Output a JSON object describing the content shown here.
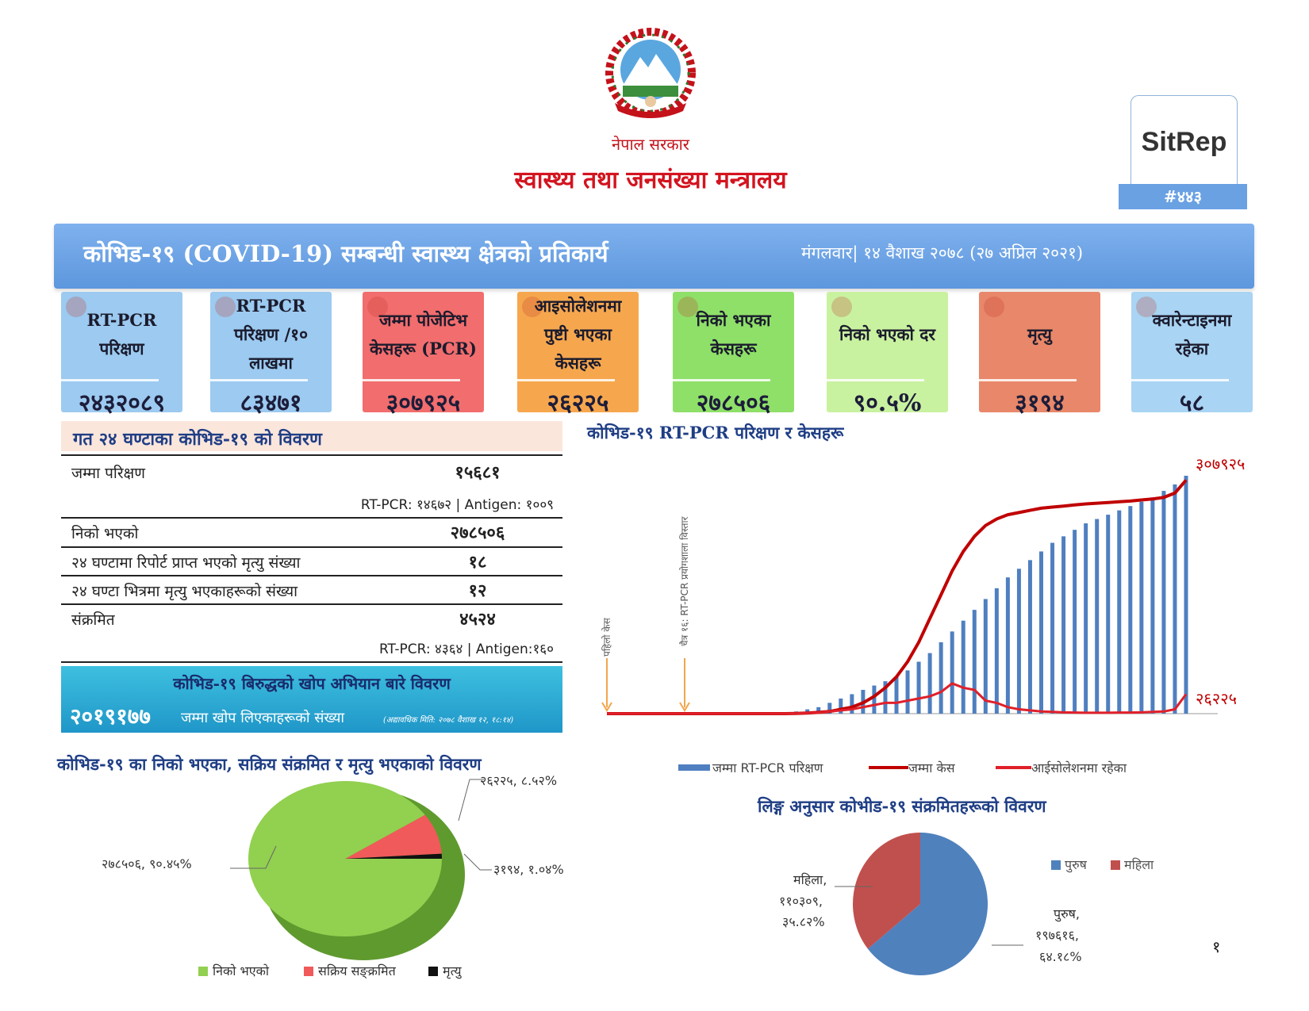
{
  "header": {
    "government": "नेपाल सरकार",
    "ministry": "स्वास्थ्य तथा जनसंख्या मन्त्रालय"
  },
  "sitrep": {
    "title": "SitRep",
    "number": "#४४३"
  },
  "banner": {
    "title": "कोभिड-१९ (COVID-19) सम्बन्धी स्वास्थ्य क्षेत्रको प्रतिकार्य",
    "date": "मंगलवार| १४ वैशाख २०७८ (२७ अप्रिल २०२१)"
  },
  "cards": [
    {
      "label": "RT-PCR परिक्षण",
      "value": "२४३२०८९",
      "color": "#9ccaf0"
    },
    {
      "label": "RT-PCR परिक्षण /१० लाखमा",
      "value": "८३४७१",
      "color": "#9ccaf0"
    },
    {
      "label": "जम्मा पोजेटिभ केसहरू (PCR)",
      "value": "३०७९२५",
      "color": "#f26d6d"
    },
    {
      "label": "आइसोलेशनमा पुष्टी भएका केसहरू",
      "value": "२६२२५",
      "color": "#f6a74e"
    },
    {
      "label": "निको भएका केसहरू",
      "value": "२७८५०६",
      "color": "#8fe069"
    },
    {
      "label": "निको भएको दर",
      "value": "९०.५%",
      "color": "#c9f2a0"
    },
    {
      "label": "मृत्यु",
      "value": "३१९४",
      "color": "#e88769"
    },
    {
      "label": "क्वारेन्टाइनमा रहेका",
      "value": "५८",
      "color": "#a9d4f3"
    }
  ],
  "last24": {
    "title": "गत २४ घण्टाका कोभिड-१९ को विवरण",
    "total_tests_label": "जम्मा परिक्षण",
    "total_tests_value": "१५६८१",
    "total_tests_breakdown": "RT-PCR: १४६७२ | Antigen: १००९",
    "recovered_label": "निको भएको",
    "recovered_value": "२७८५०६",
    "deaths_reported_label": "२४ घण्टामा रिपोर्ट प्राप्त भएको मृत्यु संख्या",
    "deaths_reported_value": "१८",
    "deaths_within_label": "२४ घण्टा भित्रमा मृत्यु भएकाहरूको संख्या",
    "deaths_within_value": "१२",
    "infected_label": "संक्रमित",
    "infected_value": "४५२४",
    "infected_breakdown": "RT-PCR: ४३६४ | Antigen:१६०"
  },
  "vaccine": {
    "title": "कोभिड-१९ बिरुद्धको खोप अभियान बारे विवरण",
    "count": "२०१९१७७",
    "label": "जम्मा खोप लिएकाहरूको संख्या",
    "note": "(अद्यावधिक मिति: २०७८ वैशाख १२, १८:१४)"
  },
  "pie_outcome": {
    "title": "कोभिड-१९ का निको भएका, सक्रिय संक्रमित र मृत्यु भएकाको विवरण",
    "label_recovered": "२७८५०६, ९०.४५%",
    "label_active": "२६२२५, ८.५२%",
    "label_deaths": "३१९४, १.०४%",
    "legend_recovered": "निको भएको",
    "legend_active": "सक्रिय सङ्क्रमित",
    "legend_deaths": "मृत्यु",
    "colors": {
      "recovered": "#92d050",
      "active": "#f05a5a",
      "deaths": "#111111"
    }
  },
  "trend_chart": {
    "title": "कोभिड-१९  RT-PCR परिक्षण र केसहरू",
    "end_label_cases": "३०७९२५",
    "end_label_isolation": "२६२२५",
    "annotation_first": "पहिलो केस",
    "annotation_lab": "चैत्र १६: RT-PCR प्रयोगशाला विस्तार",
    "legend_tests": "जम्मा RT-PCR परिक्षण",
    "legend_cases": "जम्मा केस",
    "legend_isolation": "आईसोलेशनमा रहेका"
  },
  "gender_pie": {
    "title": "लिङ्ग अनुसार कोभीड-१९ संक्रमितहरूको विवरण",
    "legend_male": "पुरुष",
    "legend_female": "महिला",
    "label_female_1": "महिला,",
    "label_female_2": "११०३०९,",
    "label_female_3": "३५.८२%",
    "label_male_1": "पुरुष,",
    "label_male_2": "१९७६१६,",
    "label_male_3": "६४.१८%",
    "colors": {
      "male": "#4f81bd",
      "female": "#c0504d"
    }
  },
  "chart_data": [
    {
      "type": "pie",
      "title": "कोभिड-१९ का निको भएका, सक्रिय संक्रमित र मृत्यु भएकाको विवरण",
      "categories": [
        "निको भएको",
        "सक्रिय सङ्क्रमित",
        "मृत्यु"
      ],
      "values": [
        278506,
        26225,
        3194
      ],
      "percentages": [
        90.45,
        8.52,
        1.04
      ],
      "legend": "bottom"
    },
    {
      "type": "pie",
      "title": "लिङ्ग अनुसार कोभीड-१९ संक्रमितहरूको विवरण",
      "categories": [
        "पुरुष",
        "महिला"
      ],
      "values": [
        197616,
        110309
      ],
      "percentages": [
        64.18,
        35.82
      ],
      "legend": "top-right"
    },
    {
      "type": "bar",
      "title": "कोभिड-१९  RT-PCR परिक्षण र केसहरू",
      "series": [
        {
          "name": "जम्मा RT-PCR परिक्षण",
          "type": "bar",
          "values": [
            0,
            0,
            0,
            0,
            0,
            0,
            0,
            0,
            0,
            0,
            0,
            0,
            0,
            0,
            0,
            0,
            0,
            1,
            2,
            3,
            5,
            7,
            9,
            11,
            13,
            15,
            17,
            20,
            24,
            28,
            33,
            38,
            43,
            48,
            53,
            58,
            63,
            67,
            71,
            75,
            79,
            82,
            85,
            88,
            90,
            92,
            94,
            96,
            98,
            100,
            103,
            106,
            110
          ]
        },
        {
          "name": "जम्मा केस",
          "type": "line",
          "values": [
            0,
            0,
            0,
            0,
            0,
            0,
            0,
            0,
            0,
            0,
            0,
            0,
            0,
            0,
            0,
            0,
            0,
            0.1,
            0.3,
            0.6,
            1,
            2,
            3,
            5,
            8,
            12,
            17,
            24,
            33,
            44,
            55,
            66,
            75,
            82,
            87,
            90,
            92,
            93,
            94,
            95,
            95.5,
            96,
            96.5,
            97,
            97.3,
            97.6,
            98,
            98.3,
            98.8,
            99.3,
            100,
            102,
            108
          ]
        },
        {
          "name": "आईसोलेशनमा रहेका",
          "type": "line",
          "values": [
            0,
            0,
            0,
            0,
            0,
            0,
            0,
            0,
            0,
            0,
            0,
            0,
            0,
            0,
            0,
            0,
            0,
            0.1,
            0.3,
            0.5,
            1,
            1.5,
            2,
            3,
            4,
            5,
            5,
            6,
            7,
            8,
            10,
            14,
            12,
            11,
            6,
            5,
            3,
            2,
            1.5,
            1,
            0.8,
            0.6,
            0.5,
            0.4,
            0.4,
            0.4,
            0.5,
            0.5,
            0.6,
            0.8,
            1,
            2,
            9
          ]
        }
      ],
      "end_labels": {
        "cases": "३०७९२५",
        "isolation": "२६२२५"
      },
      "legend": "bottom"
    }
  ]
}
